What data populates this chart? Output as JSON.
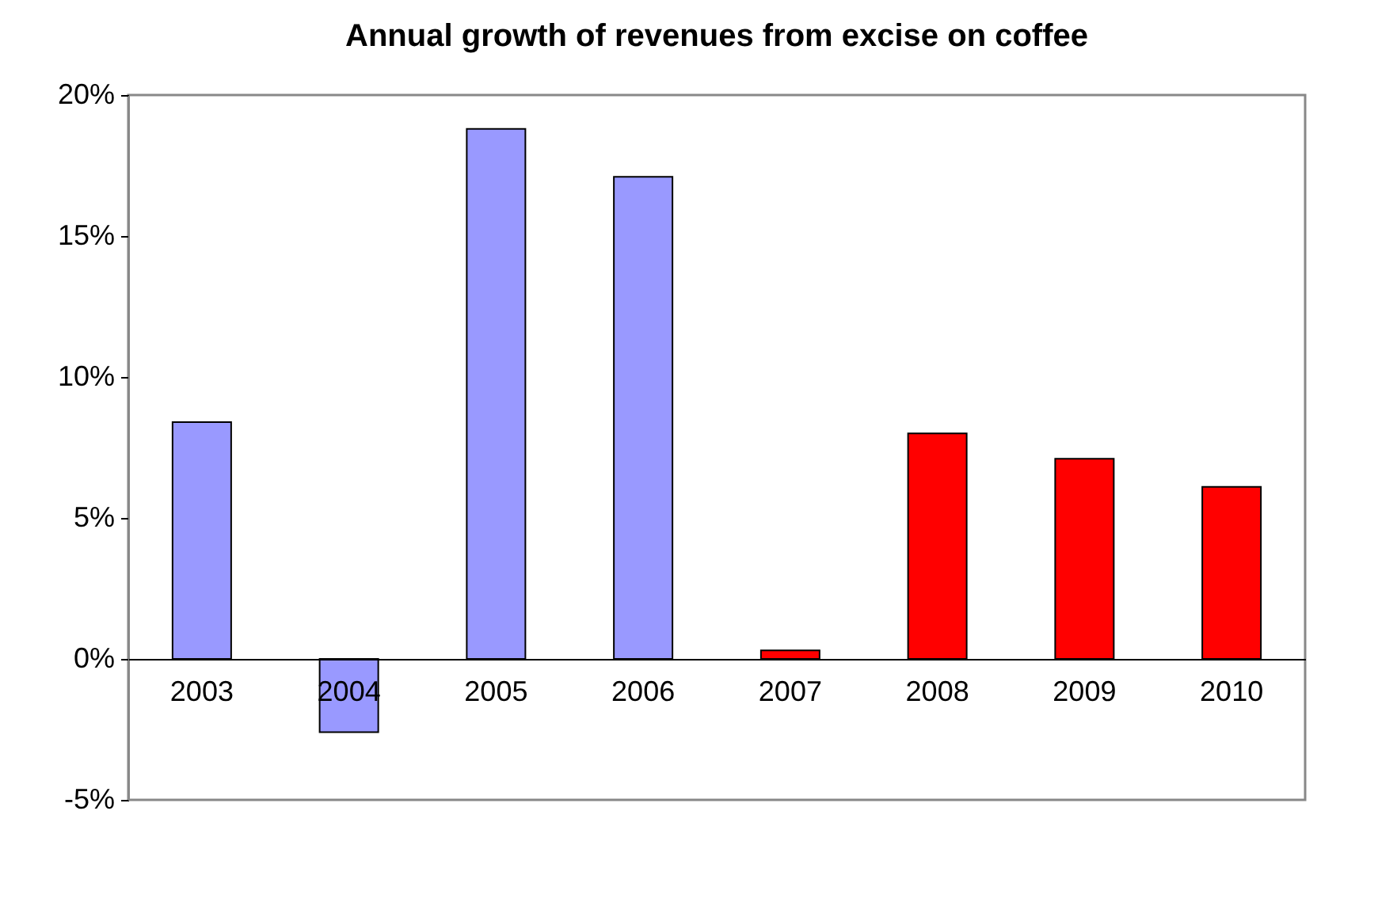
{
  "chart_data": {
    "type": "bar",
    "title": "Annual growth of revenues from excise on coffee",
    "categories": [
      "2003",
      "2004",
      "2005",
      "2006",
      "2007",
      "2008",
      "2009",
      "2010"
    ],
    "values": [
      8.4,
      -2.6,
      18.8,
      17.1,
      0.3,
      8.0,
      7.1,
      6.1
    ],
    "colors": [
      "#9999ff",
      "#9999ff",
      "#9999ff",
      "#9999ff",
      "#ff0000",
      "#ff0000",
      "#ff0000",
      "#ff0000"
    ],
    "ylim": [
      -5,
      20
    ],
    "yticks": [
      {
        "value": -5,
        "label": "-5%"
      },
      {
        "value": 0,
        "label": "0%"
      },
      {
        "value": 5,
        "label": "5%"
      },
      {
        "value": 10,
        "label": "10%"
      },
      {
        "value": 15,
        "label": "15%"
      },
      {
        "value": 20,
        "label": "20%"
      }
    ],
    "grid": false
  }
}
